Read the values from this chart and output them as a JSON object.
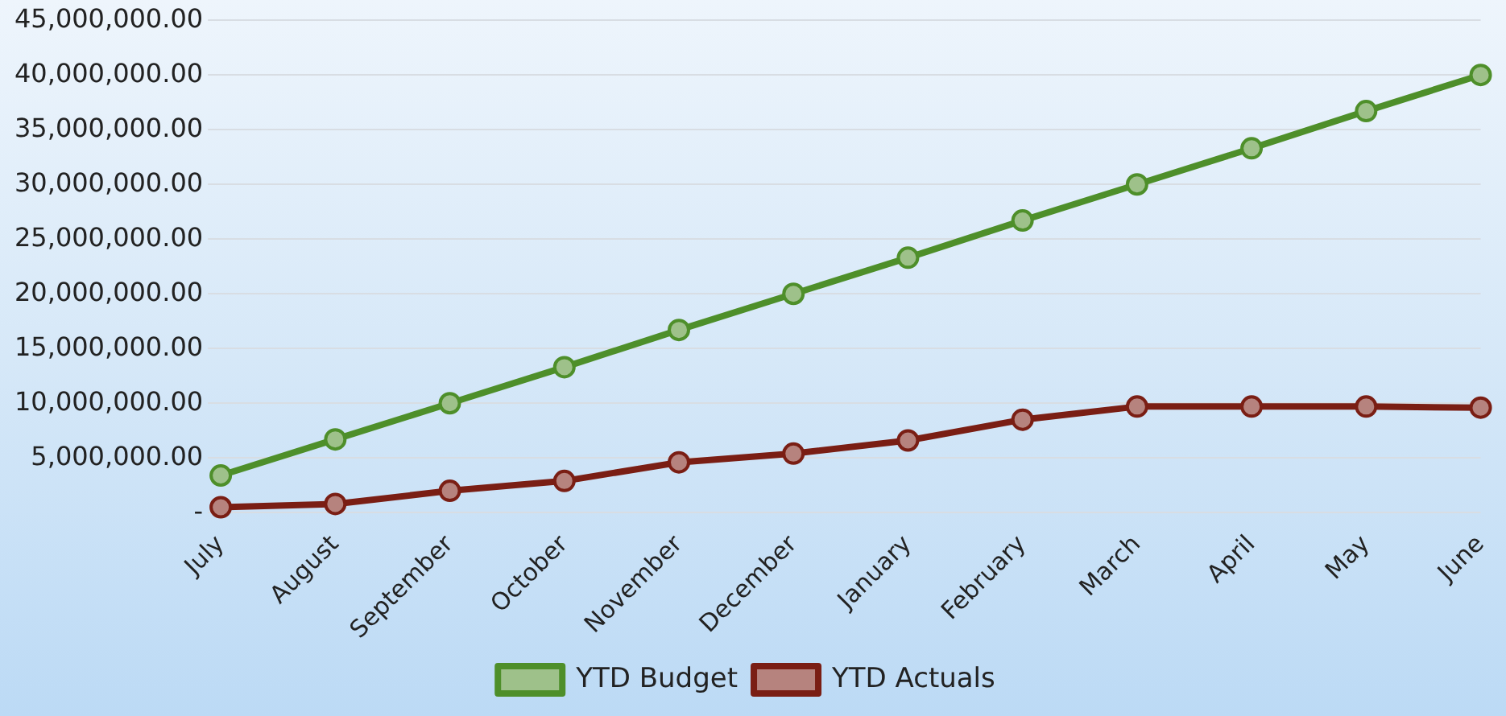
{
  "chart_data": {
    "type": "line",
    "categories": [
      "July",
      "August",
      "September",
      "October",
      "November",
      "December",
      "January",
      "February",
      "March",
      "April",
      "May",
      "June"
    ],
    "series": [
      {
        "name": "YTD Budget",
        "color": "#4e8f2a",
        "values": [
          3400000.0,
          6700000.0,
          10000000.0,
          13300000.0,
          16700000.0,
          20000000.0,
          23300000.0,
          26700000.0,
          30000000.0,
          33300000.0,
          36700000.0,
          40000000.0
        ]
      },
      {
        "name": "YTD Actuals",
        "color": "#7a1e14",
        "values": [
          500000.0,
          800000.0,
          2000000.0,
          2900000.0,
          4600000.0,
          5400000.0,
          6600000.0,
          8500000.0,
          9700000.0,
          9700000.0,
          9700000.0,
          9600000.0
        ]
      }
    ],
    "ylim": [
      0,
      45000000
    ],
    "yticks": [
      {
        "value": 0,
        "label": "-"
      },
      {
        "value": 5000000,
        "label": "5,000,000.00"
      },
      {
        "value": 10000000,
        "label": "10,000,000.00"
      },
      {
        "value": 15000000,
        "label": "15,000,000.00"
      },
      {
        "value": 20000000,
        "label": "20,000,000.00"
      },
      {
        "value": 25000000,
        "label": "25,000,000.00"
      },
      {
        "value": 30000000,
        "label": "30,000,000.00"
      },
      {
        "value": 35000000,
        "label": "35,000,000.00"
      },
      {
        "value": 40000000,
        "label": "40,000,000.00"
      },
      {
        "value": 45000000,
        "label": "45,000,000.00"
      }
    ],
    "grid": "y",
    "legend": "bottom",
    "marker": "circle",
    "line_style": "solid"
  }
}
